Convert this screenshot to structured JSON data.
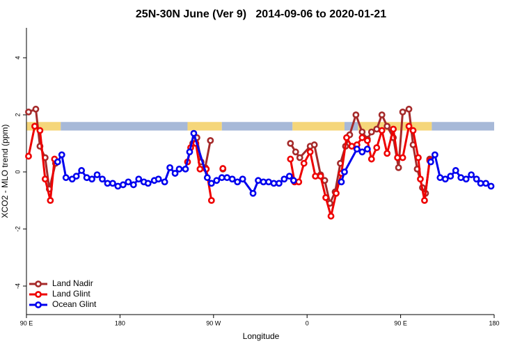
{
  "chart_data": {
    "type": "line",
    "title": "25N-30N June (Ver 9)   2014-09-06 to 2020-01-21",
    "xlabel": "Longitude",
    "ylabel": "XCO2 - MLO trend (ppm)",
    "xlim": [
      90,
      540
    ],
    "ylim": [
      -5,
      5
    ],
    "xticks": [
      {
        "value": 90,
        "label": "90 E"
      },
      180,
      {
        "value": 270,
        "label": "90 W"
      },
      {
        "value": 360,
        "label": "0"
      },
      {
        "value": 450,
        "label": "90 E"
      },
      {
        "value": 540,
        "label": "180"
      }
    ],
    "yticks": [
      -4,
      -2,
      0,
      2,
      4
    ],
    "legend": "bottom-left",
    "strip": {
      "ylim": [
        1.45,
        1.75
      ],
      "segments": [
        {
          "x": [
            90,
            123
          ],
          "color": "#f5d67a"
        },
        {
          "x": [
            123,
            245
          ],
          "color": "#a7b9d8"
        },
        {
          "x": [
            245,
            278
          ],
          "color": "#f5d67a"
        },
        {
          "x": [
            278,
            346
          ],
          "color": "#a7b9d8"
        },
        {
          "x": [
            346,
            396
          ],
          "color": "#f5d67a"
        },
        {
          "x": [
            396,
            409
          ],
          "color": "#a7b9d8"
        },
        {
          "x": [
            409,
            480
          ],
          "color": "#f5d67a"
        },
        {
          "x": [
            480,
            540
          ],
          "color": "#a7b9d8"
        }
      ]
    },
    "series": [
      {
        "name": "Land Nadir",
        "color": "#a52a2a",
        "x": [
          92,
          99,
          103,
          108,
          112,
          118,
          null,
          250,
          254,
          258,
          262,
          267,
          null,
          279,
          null,
          344,
          349,
          353,
          363,
          367,
          373,
          377,
          382,
          387,
          392,
          397,
          401,
          407,
          413,
          418,
          422,
          427,
          432,
          437,
          443,
          448,
          452,
          458,
          462,
          466,
          471,
          474,
          478
        ],
        "values": [
          2.1,
          2.2,
          0.9,
          0.5,
          -0.6,
          0.3,
          null,
          1.0,
          1.2,
          0.35,
          0.15,
          1.1,
          null,
          0.1,
          null,
          1.0,
          0.7,
          0.5,
          0.9,
          0.95,
          -0.1,
          -0.3,
          -1.1,
          -0.7,
          0.3,
          0.9,
          1.3,
          2.0,
          1.4,
          1.15,
          1.4,
          1.5,
          2.0,
          1.6,
          1.2,
          0.15,
          2.1,
          2.2,
          0.95,
          0.1,
          -0.55,
          -0.75,
          0.45
        ]
      },
      {
        "name": "Land Glint",
        "color": "#ee0000",
        "x": [
          92,
          98,
          103,
          108,
          113,
          117,
          null,
          245,
          248,
          253,
          257,
          263,
          268,
          null,
          279,
          null,
          344,
          348,
          352,
          357,
          363,
          368,
          373,
          378,
          383,
          388,
          393,
          398,
          403,
          408,
          413,
          418,
          422,
          427,
          432,
          437,
          443,
          447,
          452,
          458,
          462,
          467,
          469,
          473,
          478
        ],
        "values": [
          0.55,
          1.6,
          1.45,
          -0.25,
          -1.0,
          0.45,
          null,
          0.35,
          0.85,
          1.0,
          0.1,
          0.1,
          -1.0,
          null,
          0.12,
          null,
          0.45,
          -0.35,
          -0.35,
          0.3,
          0.7,
          -0.15,
          -0.15,
          -0.9,
          -1.55,
          -0.75,
          -0.05,
          1.2,
          0.9,
          0.95,
          1.2,
          1.1,
          0.45,
          0.85,
          1.45,
          0.65,
          1.5,
          0.5,
          0.5,
          1.6,
          1.45,
          0.5,
          -0.25,
          -1.0,
          0.4
        ]
      },
      {
        "name": "Ocean Glint",
        "color": "#0000ee",
        "x": [
          120,
          124,
          128,
          134,
          138,
          143,
          148,
          153,
          158,
          163,
          168,
          173,
          178,
          183,
          188,
          193,
          198,
          203,
          207,
          213,
          217,
          223,
          228,
          233,
          237,
          243,
          247,
          251,
          264,
          268,
          273,
          278,
          283,
          288,
          293,
          298,
          308,
          313,
          318,
          323,
          328,
          333,
          338,
          343,
          347,
          null,
          393,
          396,
          408,
          413,
          418,
          null,
          479,
          483,
          488,
          493,
          498,
          503,
          508,
          513,
          518,
          523,
          527,
          532,
          537
        ],
        "values": [
          0.35,
          0.6,
          -0.2,
          -0.25,
          -0.15,
          0.05,
          -0.2,
          -0.25,
          -0.1,
          -0.25,
          -0.4,
          -0.4,
          -0.5,
          -0.45,
          -0.35,
          -0.45,
          -0.25,
          -0.35,
          -0.4,
          -0.3,
          -0.25,
          -0.35,
          0.15,
          -0.05,
          0.1,
          0.1,
          0.7,
          1.35,
          -0.2,
          -0.4,
          -0.3,
          -0.2,
          -0.2,
          -0.25,
          -0.35,
          -0.25,
          -0.75,
          -0.3,
          -0.35,
          -0.35,
          -0.4,
          -0.4,
          -0.25,
          -0.15,
          -0.3,
          null,
          -0.35,
          0.0,
          0.8,
          0.7,
          0.8,
          null,
          0.35,
          0.6,
          -0.2,
          -0.25,
          -0.15,
          0.05,
          -0.2,
          -0.25,
          -0.1,
          -0.25,
          -0.4,
          -0.4,
          -0.5
        ]
      }
    ]
  }
}
